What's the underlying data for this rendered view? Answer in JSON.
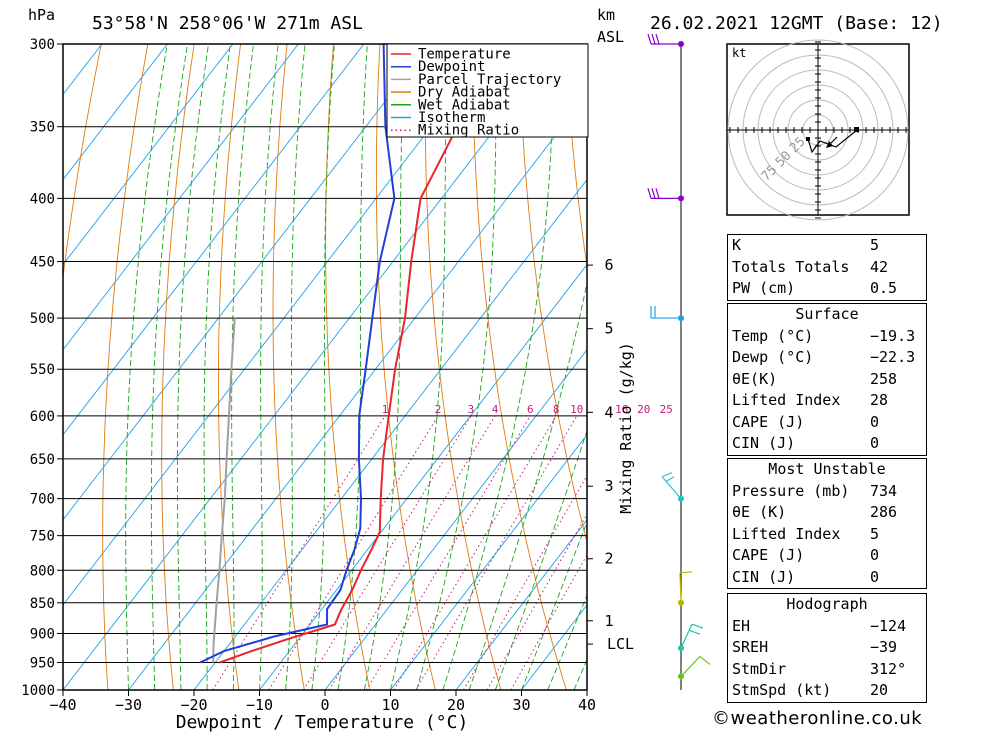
{
  "header": {
    "pressure_unit": "hPa",
    "location": "53°58'N  258°06'W  271m  ASL",
    "km_label": "km",
    "asl_label": "ASL",
    "datetime": "26.02.2021  12GMT  (Base: 12)"
  },
  "chart_data": {
    "type": "line",
    "title": "53°58'N  258°06'W  271m  ASL",
    "xlabel": "Dewpoint / Temperature (°C)",
    "ylabel": "hPa",
    "y2label": "Mixing Ratio (g/kg)",
    "x_ticks": [
      -40,
      -30,
      -20,
      -10,
      0,
      10,
      20,
      30,
      40
    ],
    "y_ticks": [
      300,
      350,
      400,
      450,
      500,
      550,
      600,
      650,
      700,
      750,
      800,
      850,
      900,
      950,
      1000
    ],
    "xlim": [
      -40,
      40
    ],
    "ylim": [
      1000,
      300
    ],
    "y_scale": "log",
    "skew": true,
    "km_ticks": [
      {
        "label": "6",
        "p": 453
      },
      {
        "label": "5",
        "p": 510
      },
      {
        "label": "4",
        "p": 596
      },
      {
        "label": "3",
        "p": 684
      },
      {
        "label": "2",
        "p": 783
      },
      {
        "label": "1",
        "p": 879
      },
      {
        "label": "LCL",
        "p": 918
      }
    ],
    "mixing_ratio_labels": [
      "1",
      "2",
      "3",
      "4",
      "6",
      "8",
      "10",
      "16",
      "20",
      "25"
    ],
    "mixing_ratio_values": [
      1,
      2,
      3,
      4,
      6,
      8,
      10,
      16,
      20,
      25
    ],
    "legend": {
      "placement": "top-right",
      "entries": [
        {
          "name": "Temperature",
          "color": "#e8262c",
          "style": "solid"
        },
        {
          "name": "Dewpoint",
          "color": "#1f3fd8",
          "style": "solid"
        },
        {
          "name": "Parcel Trajectory",
          "color": "#a0a0a0",
          "style": "solid"
        },
        {
          "name": "Dry Adiabat",
          "color": "#e07b12",
          "style": "solid"
        },
        {
          "name": "Wet Adiabat",
          "color": "#1ca51c",
          "style": "solid"
        },
        {
          "name": "Isotherm",
          "color": "#1ea2e6",
          "style": "solid"
        },
        {
          "name": "Mixing Ratio",
          "color": "#c8197a",
          "style": "dotted"
        }
      ]
    },
    "series": [
      {
        "name": "Temperature",
        "color": "#e8262c",
        "points": [
          [
            950,
            -19.3
          ],
          [
            930,
            -15.8
          ],
          [
            910,
            -11.8
          ],
          [
            885,
            -6.2
          ],
          [
            860,
            -7.0
          ],
          [
            830,
            -7.6
          ],
          [
            800,
            -8.6
          ],
          [
            770,
            -9.4
          ],
          [
            745,
            -10.2
          ],
          [
            700,
            -14.0
          ],
          [
            650,
            -18.3
          ],
          [
            600,
            -22.5
          ],
          [
            550,
            -27.0
          ],
          [
            500,
            -31.5
          ],
          [
            450,
            -37.2
          ],
          [
            400,
            -43.2
          ],
          [
            350,
            -46.0
          ],
          [
            300,
            -49.0
          ]
        ]
      },
      {
        "name": "Dewpoint",
        "color": "#1f3fd8",
        "points": [
          [
            950,
            -22.3
          ],
          [
            930,
            -20.0
          ],
          [
            905,
            -14.0
          ],
          [
            885,
            -7.4
          ],
          [
            860,
            -9.2
          ],
          [
            830,
            -9.4
          ],
          [
            800,
            -10.8
          ],
          [
            770,
            -12.0
          ],
          [
            740,
            -13.6
          ],
          [
            700,
            -17.0
          ],
          [
            650,
            -22.0
          ],
          [
            600,
            -27.0
          ],
          [
            550,
            -31.5
          ],
          [
            500,
            -36.5
          ],
          [
            450,
            -42.0
          ],
          [
            400,
            -47.2
          ],
          [
            350,
            -57.0
          ],
          [
            300,
            -67.0
          ]
        ]
      },
      {
        "name": "Parcel Trajectory",
        "color": "#a0a0a0",
        "points": [
          [
            950,
            -20.3
          ],
          [
            918,
            -22.4
          ],
          [
            850,
            -26.8
          ],
          [
            800,
            -30.2
          ],
          [
            750,
            -33.9
          ],
          [
            700,
            -37.8
          ],
          [
            650,
            -42.2
          ],
          [
            600,
            -46.9
          ],
          [
            550,
            -52.0
          ],
          [
            500,
            -57.5
          ]
        ]
      }
    ],
    "wind_barbs": [
      {
        "p": 300,
        "color": "#8a00c8"
      },
      {
        "p": 400,
        "color": "#8a00c8"
      },
      {
        "p": 500,
        "color": "#1ea2e6"
      },
      {
        "p": 700,
        "color": "#1ec8c8"
      },
      {
        "p": 850,
        "color": "#b4b400"
      },
      {
        "p": 925,
        "color": "#1ec8a0"
      },
      {
        "p": 975,
        "color": "#64c81e"
      }
    ]
  },
  "hodograph": {
    "unit": "kt",
    "ring_labels": [
      "25",
      "50",
      "75"
    ]
  },
  "indices": [
    {
      "label": "K",
      "value": "5"
    },
    {
      "label": "Totals Totals",
      "value": "42"
    },
    {
      "label": "PW (cm)",
      "value": "0.5"
    }
  ],
  "surface": {
    "title": "Surface",
    "rows": [
      {
        "label": "Temp (°C)",
        "value": "−19.3"
      },
      {
        "label": "Dewp (°C)",
        "value": "−22.3"
      },
      {
        "label": "θE(K)",
        "value": "258"
      },
      {
        "label": "Lifted Index",
        "value": "28"
      },
      {
        "label": "CAPE (J)",
        "value": "0"
      },
      {
        "label": "CIN (J)",
        "value": "0"
      }
    ]
  },
  "most_unstable": {
    "title": "Most Unstable",
    "rows": [
      {
        "label": "Pressure (mb)",
        "value": "734"
      },
      {
        "label": "θE (K)",
        "value": "286"
      },
      {
        "label": "Lifted Index",
        "value": "5"
      },
      {
        "label": "CAPE (J)",
        "value": "0"
      },
      {
        "label": "CIN (J)",
        "value": "0"
      }
    ]
  },
  "hodograph_params": {
    "title": "Hodograph",
    "rows": [
      {
        "label": "EH",
        "value": "−124"
      },
      {
        "label": "SREH",
        "value": "−39"
      },
      {
        "label": "StmDir",
        "value": "312°"
      },
      {
        "label": "StmSpd (kt)",
        "value": "20"
      }
    ]
  },
  "credit": "©weatheronline.co.uk"
}
